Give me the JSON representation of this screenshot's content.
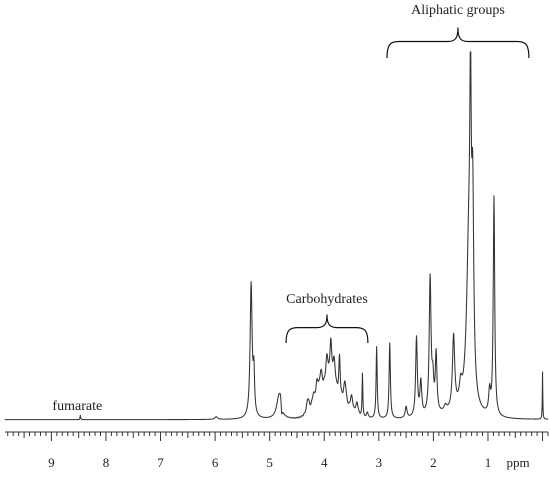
{
  "chart_data": {
    "type": "line",
    "title": "",
    "xlabel": "ppm",
    "ylabel": "",
    "x_axis": {
      "reversed": true,
      "range": [
        -0.1,
        9.85
      ],
      "major_ticks": [
        9,
        8,
        7,
        6,
        5,
        4,
        3,
        2,
        1
      ],
      "tick_labels": [
        "9",
        "8",
        "7",
        "6",
        "5",
        "4",
        "3",
        "2",
        "1"
      ],
      "unit_label": "ppm",
      "minor_tick_step": 0.1
    },
    "y_axis": {
      "visible": false,
      "range": [
        0,
        100
      ],
      "units": "relative intensity"
    },
    "grid": false,
    "legend": "none",
    "baseline": 2.2,
    "peaks": [
      {
        "ppm": 8.47,
        "height": 1.2,
        "width": 0.006
      },
      {
        "ppm": 5.98,
        "height": 0.7,
        "width": 0.03
      },
      {
        "ppm": 5.34,
        "height": 35.5,
        "width": 0.022
      },
      {
        "ppm": 5.29,
        "height": 11.0,
        "width": 0.015
      },
      {
        "ppm": 4.83,
        "height": 6.0,
        "width": 0.05
      },
      {
        "ppm": 4.8,
        "height": 2.5,
        "width": 0.02
      },
      {
        "ppm": 4.78,
        "height": -2.8,
        "width": 0.012
      },
      {
        "ppm": 4.3,
        "height": 4.0,
        "width": 0.03
      },
      {
        "ppm": 4.2,
        "height": 3.0,
        "width": 0.03
      },
      {
        "ppm": 4.13,
        "height": 5.0,
        "width": 0.03
      },
      {
        "ppm": 4.06,
        "height": 6.0,
        "width": 0.03
      },
      {
        "ppm": 3.95,
        "height": 8.0,
        "width": 0.03
      },
      {
        "ppm": 3.88,
        "height": 11.0,
        "width": 0.02
      },
      {
        "ppm": 3.82,
        "height": 7.5,
        "width": 0.03
      },
      {
        "ppm": 3.72,
        "height": 10.5,
        "width": 0.015
      },
      {
        "ppm": 3.62,
        "height": 6.5,
        "width": 0.03
      },
      {
        "ppm": 3.5,
        "height": 4.5,
        "width": 0.03
      },
      {
        "ppm": 3.4,
        "height": 3.5,
        "width": 0.03
      },
      {
        "ppm": 3.3,
        "height": 11.5,
        "width": 0.008
      },
      {
        "ppm": 3.21,
        "height": 1.5,
        "width": 0.02
      },
      {
        "ppm": 3.04,
        "height": 19.0,
        "width": 0.012
      },
      {
        "ppm": 2.8,
        "height": 20.0,
        "width": 0.014
      },
      {
        "ppm": 2.5,
        "height": 3.0,
        "width": 0.02
      },
      {
        "ppm": 2.31,
        "height": 21.0,
        "width": 0.018
      },
      {
        "ppm": 2.23,
        "height": 9.0,
        "width": 0.02
      },
      {
        "ppm": 2.06,
        "height": 36.0,
        "width": 0.02
      },
      {
        "ppm": 2.01,
        "height": 8.0,
        "width": 0.02
      },
      {
        "ppm": 1.95,
        "height": 15.5,
        "width": 0.018
      },
      {
        "ppm": 1.78,
        "height": 1.5,
        "width": 0.03
      },
      {
        "ppm": 1.63,
        "height": 19.5,
        "width": 0.025
      },
      {
        "ppm": 1.5,
        "height": 5.0,
        "width": 0.03
      },
      {
        "ppm": 1.35,
        "height": 43.0,
        "width": 0.05
      },
      {
        "ppm": 1.32,
        "height": 60.0,
        "width": 0.015
      },
      {
        "ppm": 1.28,
        "height": 48.0,
        "width": 0.022
      },
      {
        "ppm": 0.97,
        "height": 6.0,
        "width": 0.02
      },
      {
        "ppm": 0.89,
        "height": 58.0,
        "width": 0.016
      },
      {
        "ppm": 0.0,
        "height": 12.5,
        "width": 0.005
      }
    ],
    "annotations": [
      {
        "text": "fumarate",
        "ppm": 8.47,
        "kind": "label"
      },
      {
        "text": "Carbohydrates",
        "ppm_from": 4.7,
        "ppm_to": 3.2,
        "kind": "brace"
      },
      {
        "text": "Aliphatic groups",
        "ppm_from": 2.85,
        "ppm_to": 0.25,
        "kind": "brace"
      }
    ]
  }
}
